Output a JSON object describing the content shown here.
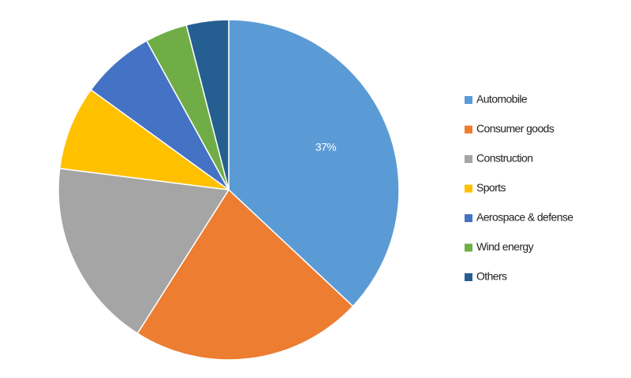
{
  "chart_data": {
    "type": "pie",
    "categories": [
      "Automobile",
      "Consumer goods",
      "Construction",
      "Sports",
      "Aerospace & defense",
      "Wind energy",
      "Others"
    ],
    "values": [
      37,
      22,
      18,
      8,
      7,
      4,
      4
    ],
    "value_labels": [
      "37%",
      null,
      null,
      null,
      null,
      null,
      null
    ],
    "colors": [
      "#5b9bd5",
      "#ed7d31",
      "#a5a5a5",
      "#ffc000",
      "#4472c4",
      "#70ad47",
      "#255e91"
    ],
    "legend": "right"
  }
}
